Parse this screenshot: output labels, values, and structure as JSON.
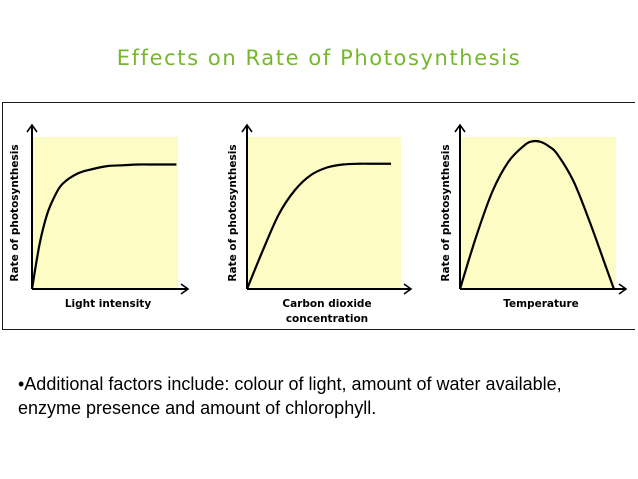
{
  "slide": {
    "title": "Effects on Rate of Photosynthesis",
    "title_color": "#76b82a",
    "bullet": "•Additional factors include: colour of light, amount of water available, enzyme presence and amount of chlorophyll."
  },
  "colors": {
    "plot_background": "#fdfcc4",
    "axis": "#000000",
    "curve": "#000000"
  },
  "chart_data": [
    {
      "type": "line",
      "ylabel": "Rate of photosynthesis",
      "xlabel": [
        "Light intensity"
      ],
      "xlim": [
        0,
        1
      ],
      "ylim": [
        0,
        1
      ],
      "grid": false,
      "series": [
        {
          "x": [
            0,
            0.05,
            0.1,
            0.15,
            0.2,
            0.3,
            0.4,
            0.5,
            0.6,
            0.7,
            0.8,
            0.9,
            0.95
          ],
          "y": [
            0,
            0.3,
            0.5,
            0.62,
            0.7,
            0.77,
            0.8,
            0.82,
            0.825,
            0.83,
            0.83,
            0.83,
            0.83
          ]
        }
      ]
    },
    {
      "type": "line",
      "ylabel": "Rate of photosynthesis",
      "xlabel": [
        "Carbon dioxide",
        "concentration"
      ],
      "xlim": [
        0,
        1
      ],
      "ylim": [
        0,
        1
      ],
      "grid": false,
      "series": [
        {
          "x": [
            0,
            0.1,
            0.2,
            0.3,
            0.4,
            0.5,
            0.6,
            0.7,
            0.8,
            0.9
          ],
          "y": [
            0,
            0.26,
            0.5,
            0.66,
            0.76,
            0.81,
            0.83,
            0.835,
            0.835,
            0.835
          ]
        }
      ]
    },
    {
      "type": "line",
      "ylabel": "Rate of photosynthesis",
      "xlabel": [
        "Temperature"
      ],
      "xlim": [
        0,
        1
      ],
      "ylim": [
        0,
        1
      ],
      "grid": false,
      "series": [
        {
          "x": [
            0,
            0.1,
            0.2,
            0.3,
            0.4,
            0.45,
            0.5,
            0.55,
            0.6,
            0.7,
            0.8,
            0.9,
            0.95
          ],
          "y": [
            0,
            0.35,
            0.65,
            0.85,
            0.96,
            0.985,
            0.98,
            0.95,
            0.9,
            0.72,
            0.45,
            0.15,
            0.0
          ]
        }
      ]
    }
  ]
}
